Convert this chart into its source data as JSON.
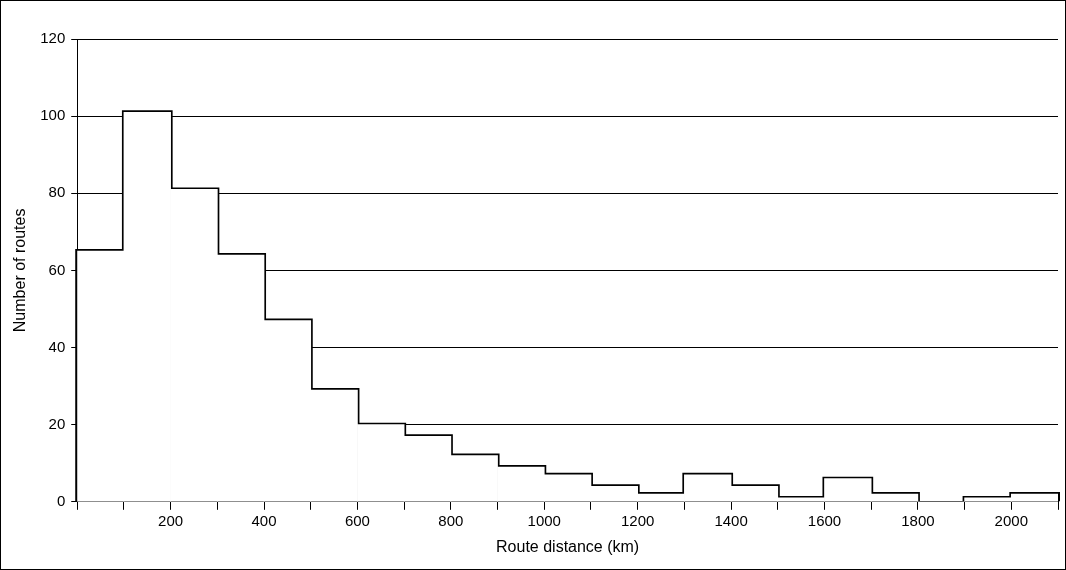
{
  "chart_data": {
    "type": "histogram",
    "xlabel": "Route distance (km)",
    "ylabel": "Number of routes",
    "bins": [
      0,
      100,
      200,
      300,
      400,
      500,
      600,
      700,
      800,
      900,
      1000,
      1100,
      1200,
      1300,
      1400,
      1500,
      1600,
      1700,
      1800,
      1900,
      2000,
      2100
    ],
    "values": [
      65,
      101,
      81,
      64,
      47,
      29,
      20,
      17,
      12,
      9,
      7,
      4,
      2,
      7,
      4,
      1,
      6,
      2,
      0,
      1,
      2
    ],
    "color": "#ffffff",
    "xlim": [
      0,
      2100
    ],
    "xticks": [
      {
        "value": 0,
        "label": null
      },
      {
        "value": 100,
        "label": null
      },
      200,
      {
        "value": 300,
        "label": null
      },
      400,
      {
        "value": 500,
        "label": null
      },
      600,
      {
        "value": 700,
        "label": null
      },
      800,
      {
        "value": 900,
        "label": null
      },
      1000,
      {
        "value": 1100,
        "label": null
      },
      1200,
      {
        "value": 1300,
        "label": null
      },
      1400,
      {
        "value": 1500,
        "label": null
      },
      1600,
      {
        "value": 1700,
        "label": null
      },
      1800,
      {
        "value": 1900,
        "label": null
      },
      2000,
      {
        "value": 2100,
        "label": null
      }
    ],
    "ylim": [
      0,
      120
    ],
    "yticks": [
      0,
      20,
      40,
      60,
      80,
      100,
      120
    ],
    "grid": "y",
    "legend": false
  }
}
